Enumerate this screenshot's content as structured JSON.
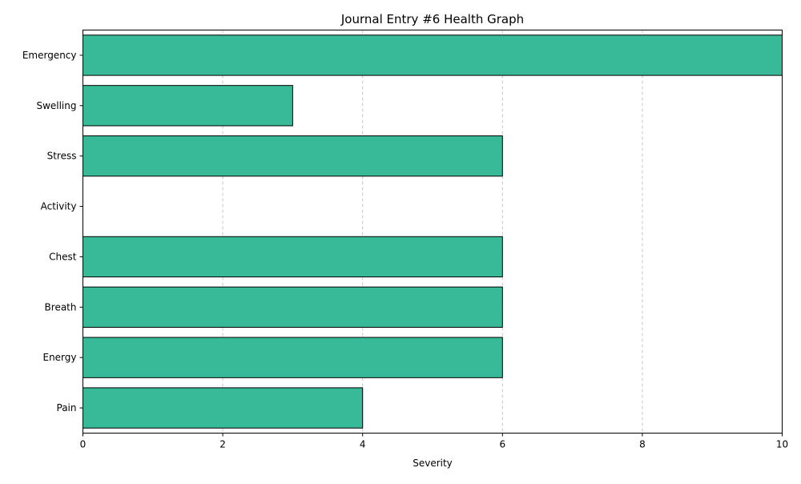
{
  "chart_data": {
    "type": "bar",
    "orientation": "horizontal",
    "title": "Journal Entry #6 Health Graph",
    "xlabel": "Severity",
    "ylabel": "",
    "categories": [
      "Pain",
      "Energy",
      "Breath",
      "Chest",
      "Activity",
      "Stress",
      "Swelling",
      "Emergency"
    ],
    "values": [
      4,
      6,
      6,
      6,
      0,
      6,
      3,
      10
    ],
    "xlim": [
      0,
      10
    ],
    "xticks": [
      "0",
      "2",
      "4",
      "6",
      "8",
      "10"
    ],
    "grid": "x-dashed",
    "legend": "none",
    "bar_color": "#38b997",
    "bar_edge_color": "#000000",
    "grid_color": "#c8c8c8"
  }
}
